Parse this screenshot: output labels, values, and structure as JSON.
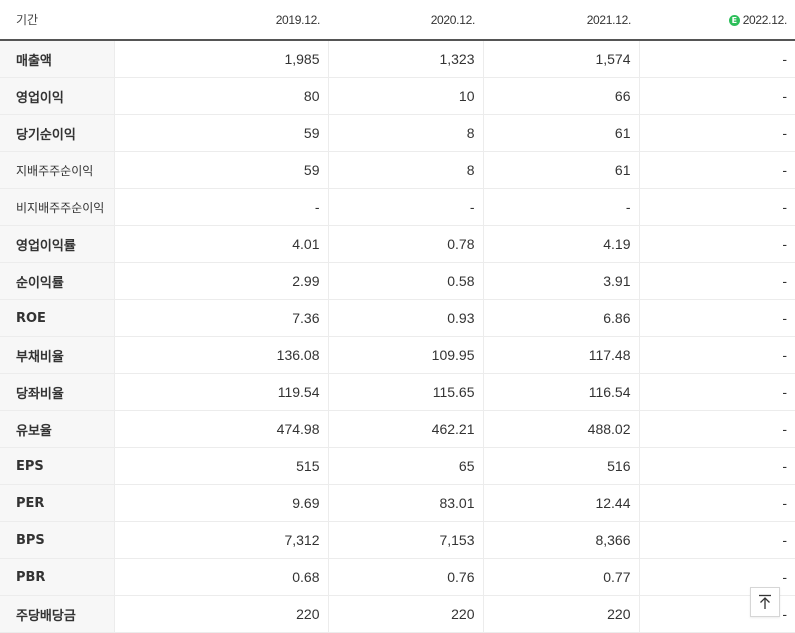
{
  "header": {
    "label": "기간",
    "years": [
      "2019.12.",
      "2020.12.",
      "2021.12.",
      "2022.12."
    ],
    "estimate_badge": "E",
    "estimate_color": "#2dbf5a"
  },
  "rows": [
    {
      "label": "매출액",
      "values": [
        "1,985",
        "1,323",
        "1,574",
        "-"
      ]
    },
    {
      "label": "영업이익",
      "values": [
        "80",
        "10",
        "66",
        "-"
      ]
    },
    {
      "label": "당기순이익",
      "values": [
        "59",
        "8",
        "61",
        "-"
      ]
    },
    {
      "label": "지배주주순이익",
      "values": [
        "59",
        "8",
        "61",
        "-"
      ]
    },
    {
      "label": "비지배주주순이익",
      "values": [
        "-",
        "-",
        "-",
        "-"
      ]
    },
    {
      "label": "영업이익률",
      "values": [
        "4.01",
        "0.78",
        "4.19",
        "-"
      ]
    },
    {
      "label": "순이익률",
      "values": [
        "2.99",
        "0.58",
        "3.91",
        "-"
      ]
    },
    {
      "label": "ROE",
      "values": [
        "7.36",
        "0.93",
        "6.86",
        "-"
      ]
    },
    {
      "label": "부채비율",
      "values": [
        "136.08",
        "109.95",
        "117.48",
        "-"
      ]
    },
    {
      "label": "당좌비율",
      "values": [
        "119.54",
        "115.65",
        "116.54",
        "-"
      ]
    },
    {
      "label": "유보율",
      "values": [
        "474.98",
        "462.21",
        "488.02",
        "-"
      ]
    },
    {
      "label": "EPS",
      "values": [
        "515",
        "65",
        "516",
        "-"
      ]
    },
    {
      "label": "PER",
      "values": [
        "9.69",
        "83.01",
        "12.44",
        "-"
      ]
    },
    {
      "label": "BPS",
      "values": [
        "7,312",
        "7,153",
        "8,366",
        "-"
      ]
    },
    {
      "label": "PBR",
      "values": [
        "0.68",
        "0.76",
        "0.77",
        "-"
      ]
    },
    {
      "label": "주당배당금",
      "values": [
        "220",
        "220",
        "220",
        "-"
      ]
    }
  ],
  "scroll_top_icon": "arrow-up-to-top-icon"
}
